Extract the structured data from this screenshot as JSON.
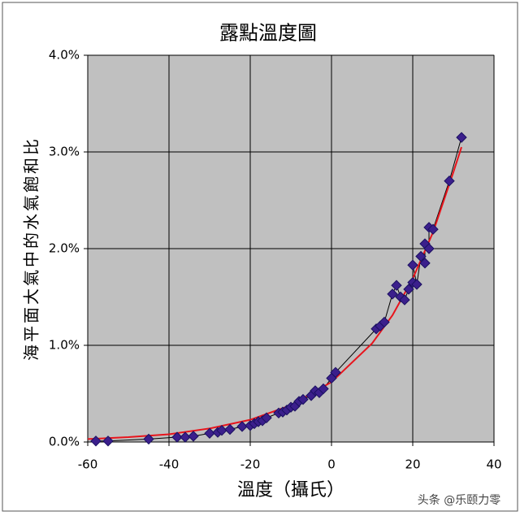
{
  "chart_data": {
    "type": "scatter",
    "title": "露點溫度圖",
    "x_label": "溫度（攝氏）",
    "y_label": "海平面大氣中的水氣飽和比",
    "watermark": "头条 @乐颐力零",
    "xlim": [
      -60,
      40
    ],
    "xticks": [
      -60,
      -40,
      -20,
      0,
      20,
      40
    ],
    "ylim": [
      0,
      4
    ],
    "yticks": [
      {
        "value": 0,
        "label": "0.0%"
      },
      {
        "value": 1,
        "label": "1.0%"
      },
      {
        "value": 2,
        "label": "2.0%"
      },
      {
        "value": 3,
        "label": "3.0%"
      },
      {
        "value": 4,
        "label": "4.0%"
      }
    ],
    "grid": true,
    "series": [
      {
        "color": "#3b1f8c",
        "x": [
          -58,
          -55,
          -45,
          -38,
          -36,
          -34,
          -30,
          -28,
          -27,
          -25,
          -22,
          -20,
          -19,
          -18,
          -17,
          -16,
          -13,
          -12,
          -11,
          -10,
          -9,
          -8,
          -7,
          -5,
          -4,
          -3,
          -2,
          0,
          1,
          11,
          12,
          13,
          15,
          16,
          17,
          18,
          19,
          20,
          20,
          21,
          22,
          23,
          23,
          24,
          24,
          25,
          29,
          32
        ],
        "values": [
          0.01,
          0.01,
          0.03,
          0.05,
          0.05,
          0.06,
          0.09,
          0.1,
          0.12,
          0.13,
          0.16,
          0.17,
          0.19,
          0.21,
          0.22,
          0.25,
          0.3,
          0.31,
          0.33,
          0.36,
          0.37,
          0.42,
          0.44,
          0.48,
          0.53,
          0.51,
          0.55,
          0.66,
          0.72,
          1.17,
          1.2,
          1.24,
          1.53,
          1.62,
          1.5,
          1.47,
          1.58,
          1.65,
          1.83,
          1.63,
          1.92,
          1.85,
          2.05,
          2.0,
          2.22,
          2.2,
          2.7,
          3.15
        ]
      }
    ],
    "trendline": {
      "color": "#e8141c",
      "x": [
        -60,
        -50,
        -40,
        -30,
        -20,
        -10,
        0,
        10,
        15,
        20,
        25,
        30,
        32
      ],
      "values": [
        0.03,
        0.05,
        0.08,
        0.14,
        0.23,
        0.38,
        0.62,
        1.02,
        1.31,
        1.69,
        2.17,
        2.79,
        3.05
      ]
    }
  }
}
